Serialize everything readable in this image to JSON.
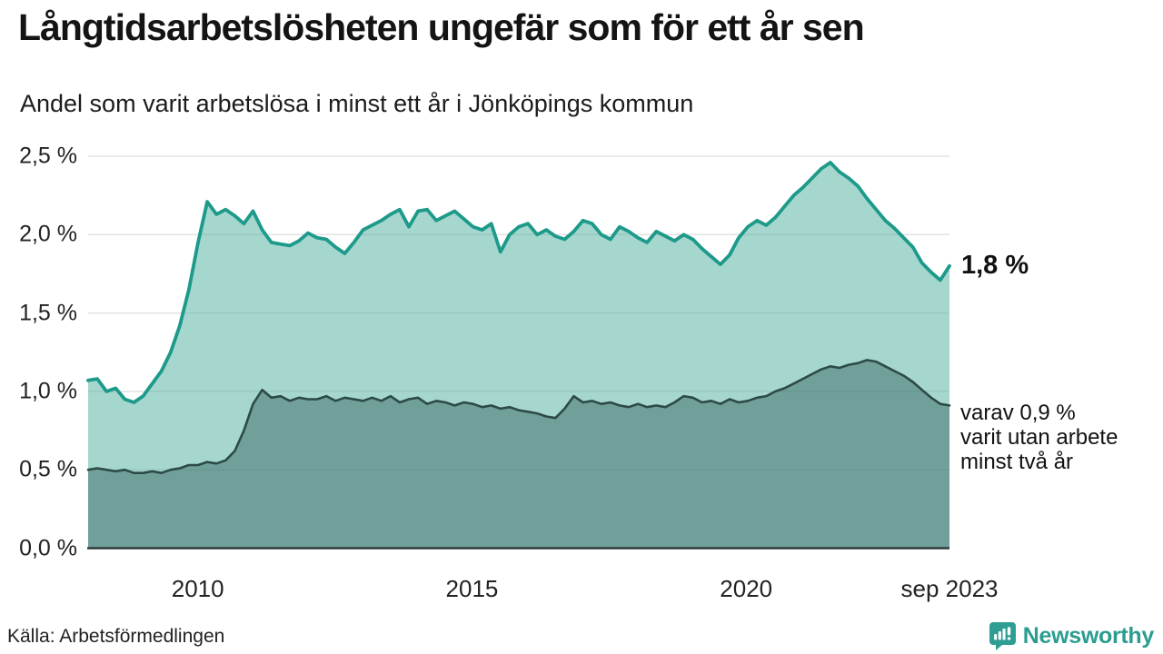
{
  "title": "Långtidsarbetslösheten ungefär som för ett år sen",
  "subtitle": "Andel som varit arbetslösa i minst ett år i Jönköpings kommun",
  "annotations": {
    "latest_value": "1,8 %",
    "secondary_line1": "varav 0,9 %",
    "secondary_line2": "varit utan arbete",
    "secondary_line3": "minst två år"
  },
  "source": "Källa: Arbetsförmedlingen",
  "brand": {
    "name": "Newsworthy",
    "color": "#2a9d8f",
    "icon": "speech-bubble-bar-chart-icon"
  },
  "chart_data": {
    "type": "area",
    "title": "Långtidsarbetslösheten ungefär som för ett år sen",
    "xlabel": "",
    "ylabel": "",
    "x_start": 2008.0,
    "x_end": 2023.708,
    "ylim": [
      0,
      2.5
    ],
    "grid": true,
    "legend_position": "none",
    "x_ticks": [
      {
        "value": 2010,
        "label": "2010"
      },
      {
        "value": 2015,
        "label": "2015"
      },
      {
        "value": 2020,
        "label": "2020"
      },
      {
        "value": 2023.708,
        "label": "sep 2023"
      }
    ],
    "y_ticks": [
      {
        "value": 2.5,
        "label": "2,5 %"
      },
      {
        "value": 2.0,
        "label": "2,0 %"
      },
      {
        "value": 1.5,
        "label": "1,5 %"
      },
      {
        "value": 1.0,
        "label": "1,0 %"
      },
      {
        "value": 0.5,
        "label": "0,5 %"
      },
      {
        "value": 0.0,
        "label": "0,0 %"
      }
    ],
    "colors": {
      "line_primary": "#1d9a8a",
      "fill_primary": "rgba(77,175,160,0.5)",
      "line_secondary": "#2c4a46",
      "fill_secondary": "rgba(60,103,99,0.5)",
      "gridline": "#e2e2e2",
      "axis_line": "#2f3c3a"
    },
    "series": [
      {
        "name": "Arbetslösa minst ett år",
        "latest_label": "1,8 %",
        "values": [
          1.07,
          1.08,
          1.0,
          1.02,
          0.95,
          0.93,
          0.97,
          1.05,
          1.13,
          1.25,
          1.42,
          1.65,
          1.95,
          2.21,
          2.13,
          2.16,
          2.12,
          2.07,
          2.15,
          2.03,
          1.95,
          1.94,
          1.93,
          1.96,
          2.01,
          1.98,
          1.97,
          1.92,
          1.88,
          1.95,
          2.03,
          2.06,
          2.09,
          2.13,
          2.16,
          2.05,
          2.15,
          2.16,
          2.09,
          2.12,
          2.15,
          2.1,
          2.05,
          2.03,
          2.07,
          1.89,
          2.0,
          2.05,
          2.07,
          2.0,
          2.03,
          1.99,
          1.97,
          2.02,
          2.09,
          2.07,
          2.0,
          1.97,
          2.05,
          2.02,
          1.98,
          1.95,
          2.02,
          1.99,
          1.96,
          2.0,
          1.97,
          1.91,
          1.86,
          1.81,
          1.87,
          1.98,
          2.05,
          2.09,
          2.06,
          2.11,
          2.18,
          2.25,
          2.3,
          2.36,
          2.42,
          2.46,
          2.4,
          2.36,
          2.31,
          2.23,
          2.16,
          2.09,
          2.04,
          1.98,
          1.92,
          1.82,
          1.76,
          1.71,
          1.8
        ]
      },
      {
        "name": "Arbetslösa minst två år",
        "latest_label": "0,9 %",
        "values": [
          0.5,
          0.51,
          0.5,
          0.49,
          0.5,
          0.48,
          0.48,
          0.49,
          0.48,
          0.5,
          0.51,
          0.53,
          0.53,
          0.55,
          0.54,
          0.56,
          0.62,
          0.75,
          0.92,
          1.01,
          0.96,
          0.97,
          0.94,
          0.96,
          0.95,
          0.95,
          0.97,
          0.94,
          0.96,
          0.95,
          0.94,
          0.96,
          0.94,
          0.97,
          0.93,
          0.95,
          0.96,
          0.92,
          0.94,
          0.93,
          0.91,
          0.93,
          0.92,
          0.9,
          0.91,
          0.89,
          0.9,
          0.88,
          0.87,
          0.86,
          0.84,
          0.83,
          0.89,
          0.97,
          0.93,
          0.94,
          0.92,
          0.93,
          0.91,
          0.9,
          0.92,
          0.9,
          0.91,
          0.9,
          0.93,
          0.97,
          0.96,
          0.93,
          0.94,
          0.92,
          0.95,
          0.93,
          0.94,
          0.96,
          0.97,
          1.0,
          1.02,
          1.05,
          1.08,
          1.11,
          1.14,
          1.16,
          1.15,
          1.17,
          1.18,
          1.2,
          1.19,
          1.16,
          1.13,
          1.1,
          1.06,
          1.01,
          0.96,
          0.92,
          0.91
        ]
      }
    ]
  }
}
